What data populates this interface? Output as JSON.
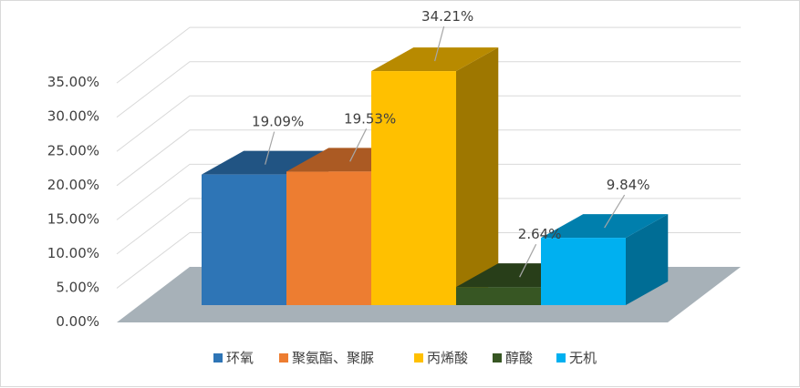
{
  "chart_data": {
    "type": "bar",
    "categories": [
      "环氧",
      "聚氨酯、聚脲",
      "丙烯酸",
      "醇酸",
      "无机"
    ],
    "values": [
      19.09,
      19.53,
      34.21,
      2.64,
      9.84
    ],
    "data_labels": [
      "19.09%",
      "19.53%",
      "34.21%",
      "2.64%",
      "9.84%"
    ],
    "ylim": [
      0,
      35
    ],
    "yticks": [
      "0.00%",
      "5.00%",
      "10.00%",
      "15.00%",
      "20.00%",
      "25.00%",
      "30.00%",
      "35.00%"
    ],
    "grid": true,
    "legend_position": "bottom",
    "style": "3d-column",
    "colors": [
      "#2e75b6",
      "#ed7d31",
      "#ffc000",
      "#375623",
      "#00b0f0"
    ]
  }
}
